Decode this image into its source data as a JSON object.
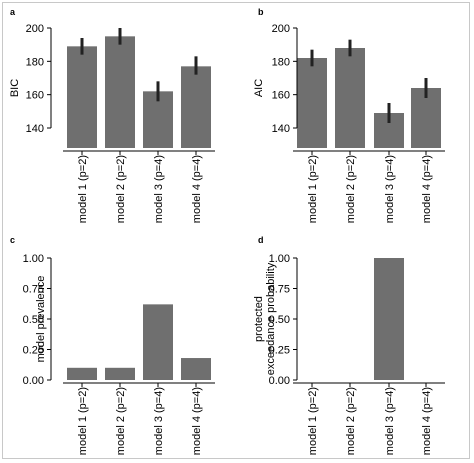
{
  "colors": {
    "bar": "#6f6f6f",
    "error": "#222222",
    "axis": "#000000",
    "frame": "#c8c8c8"
  },
  "chart_data": [
    {
      "panel_label": "a",
      "type": "bar",
      "ylabel": "BIC",
      "ylim": [
        128,
        200
      ],
      "yticks": [
        140,
        160,
        180,
        200
      ],
      "categories": [
        "model 1 (p=2)",
        "model 2 (p=2)",
        "model 3 (p=4)",
        "model 4 (p=4)"
      ],
      "values": [
        189,
        195,
        162,
        177
      ],
      "errors": [
        [
          184,
          194
        ],
        [
          190,
          200
        ],
        [
          156,
          168
        ],
        [
          172,
          183
        ]
      ]
    },
    {
      "panel_label": "b",
      "type": "bar",
      "ylabel": "AIC",
      "ylim": [
        128,
        200
      ],
      "yticks": [
        140,
        160,
        180,
        200
      ],
      "categories": [
        "model 1 (p=2)",
        "model 2 (p=2)",
        "model 3 (p=4)",
        "model 4 (p=4)"
      ],
      "values": [
        182,
        188,
        149,
        164
      ],
      "errors": [
        [
          177,
          187
        ],
        [
          183,
          193
        ],
        [
          143,
          155
        ],
        [
          158,
          170
        ]
      ]
    },
    {
      "panel_label": "c",
      "type": "bar",
      "ylabel": "model prevalence",
      "ylim": [
        0,
        1
      ],
      "yticks": [
        "0.00",
        "0.25",
        "0.50",
        "0.75",
        "1.00"
      ],
      "categories": [
        "model 1 (p=2)",
        "model 2 (p=2)",
        "model 3 (p=4)",
        "model 4 (p=4)"
      ],
      "values": [
        0.1,
        0.1,
        0.62,
        0.18
      ]
    },
    {
      "panel_label": "d",
      "type": "bar",
      "ylabel": [
        "protected",
        "exceedance probability"
      ],
      "ylim": [
        0,
        1
      ],
      "yticks": [
        "0.00",
        "0.25",
        "0.50",
        "0.75",
        "1.00"
      ],
      "categories": [
        "model 1 (p=2)",
        "model 2 (p=2)",
        "model 3 (p=4)",
        "model 4 (p=4)"
      ],
      "values": [
        0.0,
        0.0,
        1.0,
        0.0
      ]
    }
  ]
}
